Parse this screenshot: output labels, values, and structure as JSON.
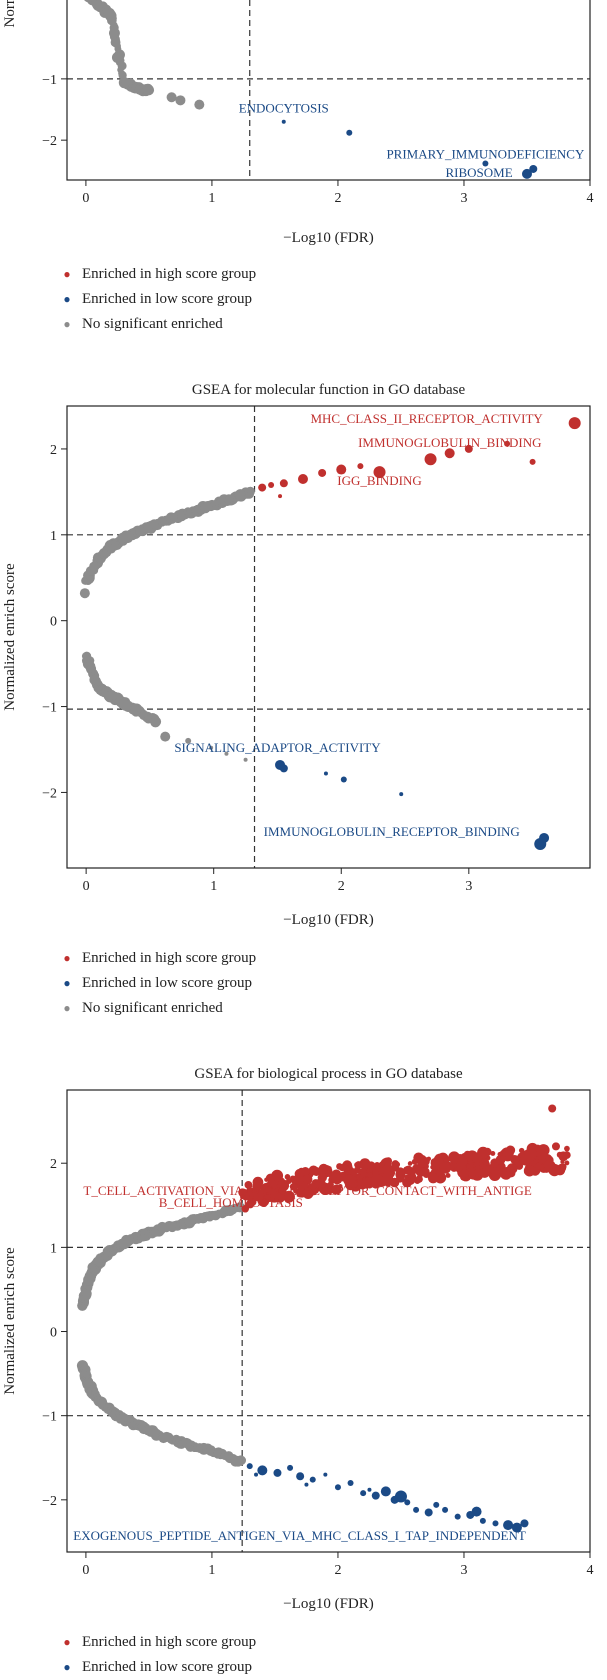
{
  "colors": {
    "high": "#c0302e",
    "low": "#1b4a86",
    "ns": "#8c8c8c"
  },
  "legend": {
    "high": "Enriched in high score group",
    "low": "Enriched in low score group",
    "ns": "No significant enriched"
  },
  "chart_data": [
    {
      "type": "scatter",
      "title": "",
      "xlabel": "−Log10 (FDR)",
      "ylabel": "Norm",
      "xlim": [
        -0.15,
        4.0
      ],
      "ylim": [
        -2.65,
        0.45
      ],
      "xticks": [
        0,
        1,
        2,
        3,
        4
      ],
      "yticks": [
        -1,
        -2
      ],
      "ytick_labels": [
        "−1",
        "−2"
      ],
      "fdr_cutoff_x": 1.3,
      "nes_cutoff_y": [
        -1
      ],
      "grid": false,
      "legend_position": "below",
      "ns_curves": [
        {
          "x": [
            0.0,
            0.1,
            0.2,
            0.3,
            0.4,
            0.5
          ],
          "y": [
            0.38,
            0.22,
            0.02,
            -1.05,
            -1.15,
            -1.2
          ]
        }
      ],
      "ns_points": [
        {
          "x": 0.68,
          "y": -1.3,
          "s": 5
        },
        {
          "x": 0.75,
          "y": -1.35,
          "s": 5
        },
        {
          "x": 0.9,
          "y": -1.42,
          "s": 5
        }
      ],
      "sig_points": [
        {
          "x": 1.57,
          "y": -1.7,
          "s": 2,
          "g": "low"
        },
        {
          "x": 2.09,
          "y": -1.88,
          "s": 3,
          "g": "low"
        },
        {
          "x": 3.17,
          "y": -2.38,
          "s": 3,
          "g": "low"
        },
        {
          "x": 3.5,
          "y": -2.55,
          "s": 5,
          "g": "low"
        },
        {
          "x": 3.55,
          "y": -2.47,
          "s": 4,
          "g": "low"
        }
      ],
      "labels": [
        {
          "text": "ENDOCYTOSIS",
          "x": 1.57,
          "y": -1.55,
          "g": "low",
          "anchor": "middle"
        },
        {
          "text": "PRIMARY_IMMUNODEFICIENCY",
          "x": 3.17,
          "y": -2.3,
          "g": "low",
          "anchor": "middle"
        },
        {
          "text": "RIBOSOME",
          "x": 3.12,
          "y": -2.6,
          "g": "low",
          "anchor": "middle"
        }
      ]
    },
    {
      "type": "scatter",
      "title": "GSEA for molecular function in GO database",
      "xlabel": "−Log10 (FDR)",
      "ylabel": "Normalized enrich score",
      "xlim": [
        -0.15,
        3.95
      ],
      "ylim": [
        -2.88,
        2.5
      ],
      "xticks": [
        0,
        1,
        2,
        3
      ],
      "yticks": [
        2,
        1,
        0,
        -1,
        -2
      ],
      "ytick_labels": [
        "2",
        "1",
        "0",
        "−1",
        "−2"
      ],
      "fdr_cutoff_x": 1.32,
      "nes_cutoff_y": [
        1,
        -1.03
      ],
      "grid": false,
      "legend_position": "below",
      "ns_curves": [
        {
          "x": [
            0.0,
            0.1,
            0.2,
            0.3,
            0.45,
            0.6,
            0.8,
            1.0,
            1.2,
            1.3
          ],
          "y": [
            0.45,
            0.72,
            0.86,
            0.96,
            1.06,
            1.15,
            1.25,
            1.35,
            1.45,
            1.5
          ]
        },
        {
          "x": [
            0.0,
            0.1,
            0.2,
            0.3,
            0.4,
            0.55
          ],
          "y": [
            -0.4,
            -0.78,
            -0.88,
            -0.96,
            -1.05,
            -1.18
          ]
        }
      ],
      "ns_points": [
        {
          "x": -0.01,
          "y": 0.32,
          "s": 5
        },
        {
          "x": 0.62,
          "y": -1.35,
          "s": 5
        },
        {
          "x": 0.8,
          "y": -1.4,
          "s": 3
        },
        {
          "x": 0.98,
          "y": -1.48,
          "s": 2
        },
        {
          "x": 1.1,
          "y": -1.55,
          "s": 2
        },
        {
          "x": 1.25,
          "y": -1.62,
          "s": 2
        }
      ],
      "sig_points": [
        {
          "x": 1.38,
          "y": 1.55,
          "s": 4,
          "g": "high"
        },
        {
          "x": 1.45,
          "y": 1.58,
          "s": 3,
          "g": "high"
        },
        {
          "x": 1.55,
          "y": 1.6,
          "s": 4,
          "g": "high"
        },
        {
          "x": 1.7,
          "y": 1.65,
          "s": 5,
          "g": "high"
        },
        {
          "x": 1.85,
          "y": 1.72,
          "s": 4,
          "g": "high"
        },
        {
          "x": 2.0,
          "y": 1.76,
          "s": 5,
          "g": "high"
        },
        {
          "x": 2.15,
          "y": 1.8,
          "s": 3,
          "g": "high"
        },
        {
          "x": 2.3,
          "y": 1.73,
          "s": 6,
          "g": "high"
        },
        {
          "x": 1.52,
          "y": 1.45,
          "s": 2,
          "g": "high"
        },
        {
          "x": 2.7,
          "y": 1.88,
          "s": 6,
          "g": "high"
        },
        {
          "x": 2.85,
          "y": 1.95,
          "s": 5,
          "g": "high"
        },
        {
          "x": 3.0,
          "y": 2.0,
          "s": 4,
          "g": "high"
        },
        {
          "x": 3.3,
          "y": 2.06,
          "s": 3,
          "g": "high"
        },
        {
          "x": 3.5,
          "y": 1.85,
          "s": 3,
          "g": "high"
        },
        {
          "x": 3.83,
          "y": 2.3,
          "s": 6,
          "g": "high"
        },
        {
          "x": 1.52,
          "y": -1.68,
          "s": 5,
          "g": "low"
        },
        {
          "x": 1.55,
          "y": -1.72,
          "s": 4,
          "g": "low"
        },
        {
          "x": 1.88,
          "y": -1.78,
          "s": 2,
          "g": "low"
        },
        {
          "x": 2.02,
          "y": -1.85,
          "s": 3,
          "g": "low"
        },
        {
          "x": 2.47,
          "y": -2.02,
          "s": 2,
          "g": "low"
        },
        {
          "x": 3.56,
          "y": -2.6,
          "s": 6,
          "g": "low"
        },
        {
          "x": 3.59,
          "y": -2.53,
          "s": 5,
          "g": "low"
        }
      ],
      "labels": [
        {
          "text": "MHC_CLASS_II_RECEPTOR_ACTIVITY",
          "x": 3.58,
          "y": 2.3,
          "g": "high",
          "anchor": "end"
        },
        {
          "text": "IMMUNOGLOBULIN_BINDING",
          "x": 3.57,
          "y": 2.02,
          "g": "high",
          "anchor": "end"
        },
        {
          "text": "IGG_BINDING",
          "x": 2.3,
          "y": 1.58,
          "g": "high",
          "anchor": "middle"
        },
        {
          "text": "SIGNALING_ADAPTOR_ACTIVITY",
          "x": 1.5,
          "y": -1.53,
          "g": "low",
          "anchor": "middle"
        },
        {
          "text": "IMMUNOGLOBULIN_RECEPTOR_BINDING",
          "x": 3.4,
          "y": -2.51,
          "g": "low",
          "anchor": "end"
        }
      ]
    },
    {
      "type": "scatter",
      "title": "GSEA for biological process in GO database",
      "xlabel": "−Log10 (FDR)",
      "ylabel": "Normalized enrich score",
      "xlim": [
        -0.15,
        4.0
      ],
      "ylim": [
        -2.62,
        2.87
      ],
      "xticks": [
        0,
        1,
        2,
        3,
        4
      ],
      "yticks": [
        2,
        1,
        0,
        -1,
        -2
      ],
      "ytick_labels": [
        "2",
        "1",
        "0",
        "−1",
        "−2"
      ],
      "fdr_cutoff_x": 1.24,
      "nes_cutoff_y": [
        1,
        -1
      ],
      "grid": false,
      "legend_position": "below",
      "ns_curves": [
        {
          "x": [
            -0.02,
            0.0,
            0.05,
            0.1,
            0.2,
            0.3,
            0.45,
            0.6,
            0.8,
            1.0,
            1.24
          ],
          "y": [
            0.3,
            0.5,
            0.72,
            0.82,
            0.96,
            1.05,
            1.14,
            1.22,
            1.3,
            1.38,
            1.48
          ]
        },
        {
          "x": [
            -0.02,
            0.0,
            0.05,
            0.1,
            0.2,
            0.3,
            0.45,
            0.6,
            0.8,
            1.0,
            1.24
          ],
          "y": [
            -0.42,
            -0.55,
            -0.72,
            -0.82,
            -0.95,
            -1.04,
            -1.14,
            -1.24,
            -1.34,
            -1.42,
            -1.55
          ]
        }
      ],
      "ns_points": [
        {
          "x": 0.75,
          "y": -1.33,
          "s": 3
        },
        {
          "x": 0.9,
          "y": -1.38,
          "s": 3
        },
        {
          "x": 1.05,
          "y": -1.45,
          "s": 3
        }
      ],
      "high_cloud": {
        "x0": 1.24,
        "x1": 3.82,
        "y0": 1.5,
        "y1": 2.02,
        "n": 380
      },
      "low_trail": [
        {
          "x": 1.3,
          "y": -1.6,
          "s": 3
        },
        {
          "x": 1.4,
          "y": -1.65,
          "s": 5
        },
        {
          "x": 1.52,
          "y": -1.68,
          "s": 4
        },
        {
          "x": 1.62,
          "y": -1.62,
          "s": 3
        },
        {
          "x": 1.7,
          "y": -1.72,
          "s": 4
        },
        {
          "x": 1.8,
          "y": -1.76,
          "s": 3
        },
        {
          "x": 1.9,
          "y": -1.7,
          "s": 2
        },
        {
          "x": 2.0,
          "y": -1.85,
          "s": 3
        },
        {
          "x": 2.1,
          "y": -1.8,
          "s": 3
        },
        {
          "x": 2.2,
          "y": -1.92,
          "s": 3
        },
        {
          "x": 2.3,
          "y": -1.95,
          "s": 4
        },
        {
          "x": 2.38,
          "y": -1.9,
          "s": 5
        },
        {
          "x": 2.45,
          "y": -2.0,
          "s": 4
        },
        {
          "x": 2.55,
          "y": -2.03,
          "s": 3
        },
        {
          "x": 2.62,
          "y": -2.12,
          "s": 3
        },
        {
          "x": 2.72,
          "y": -2.15,
          "s": 4
        },
        {
          "x": 2.85,
          "y": -2.12,
          "s": 3
        },
        {
          "x": 2.95,
          "y": -2.2,
          "s": 3
        },
        {
          "x": 3.05,
          "y": -2.18,
          "s": 4
        },
        {
          "x": 3.15,
          "y": -2.25,
          "s": 3
        },
        {
          "x": 3.25,
          "y": -2.28,
          "s": 3
        },
        {
          "x": 3.35,
          "y": -2.3,
          "s": 5
        },
        {
          "x": 3.42,
          "y": -2.33,
          "s": 5
        },
        {
          "x": 3.48,
          "y": -2.28,
          "s": 4
        },
        {
          "x": 1.35,
          "y": -1.7,
          "s": 2
        },
        {
          "x": 1.75,
          "y": -1.82,
          "s": 2
        },
        {
          "x": 2.25,
          "y": -1.88,
          "s": 2
        },
        {
          "x": 2.5,
          "y": -1.96,
          "s": 6
        },
        {
          "x": 2.78,
          "y": -2.06,
          "s": 3
        },
        {
          "x": 3.1,
          "y": -2.14,
          "s": 5
        }
      ],
      "sig_points": [
        {
          "x": 3.7,
          "y": 2.65,
          "s": 4,
          "g": "high"
        },
        {
          "x": 3.73,
          "y": 2.2,
          "s": 4,
          "g": "high"
        },
        {
          "x": 3.76,
          "y": 2.1,
          "s": 3,
          "g": "high"
        },
        {
          "x": 3.79,
          "y": 1.96,
          "s": 3,
          "g": "high"
        }
      ],
      "labels": [
        {
          "text": "T_CELL_ACTIVATION_VIA_T_CELL_RECEPTOR_CONTACT_WITH_ANTIGE",
          "x": -0.02,
          "y": 1.62,
          "g": "high",
          "anchor": "start"
        },
        {
          "text": "B_CELL_HOMEOSTASIS",
          "x": 1.15,
          "y": 1.48,
          "g": "high",
          "anchor": "middle"
        },
        {
          "text": "EXOGENOUS_PEPTIDE_ANTIGEN_VIA_MHC_CLASS_I_TAP_INDEPENDENT",
          "x": -0.1,
          "y": -2.48,
          "g": "low",
          "anchor": "start"
        }
      ]
    }
  ]
}
